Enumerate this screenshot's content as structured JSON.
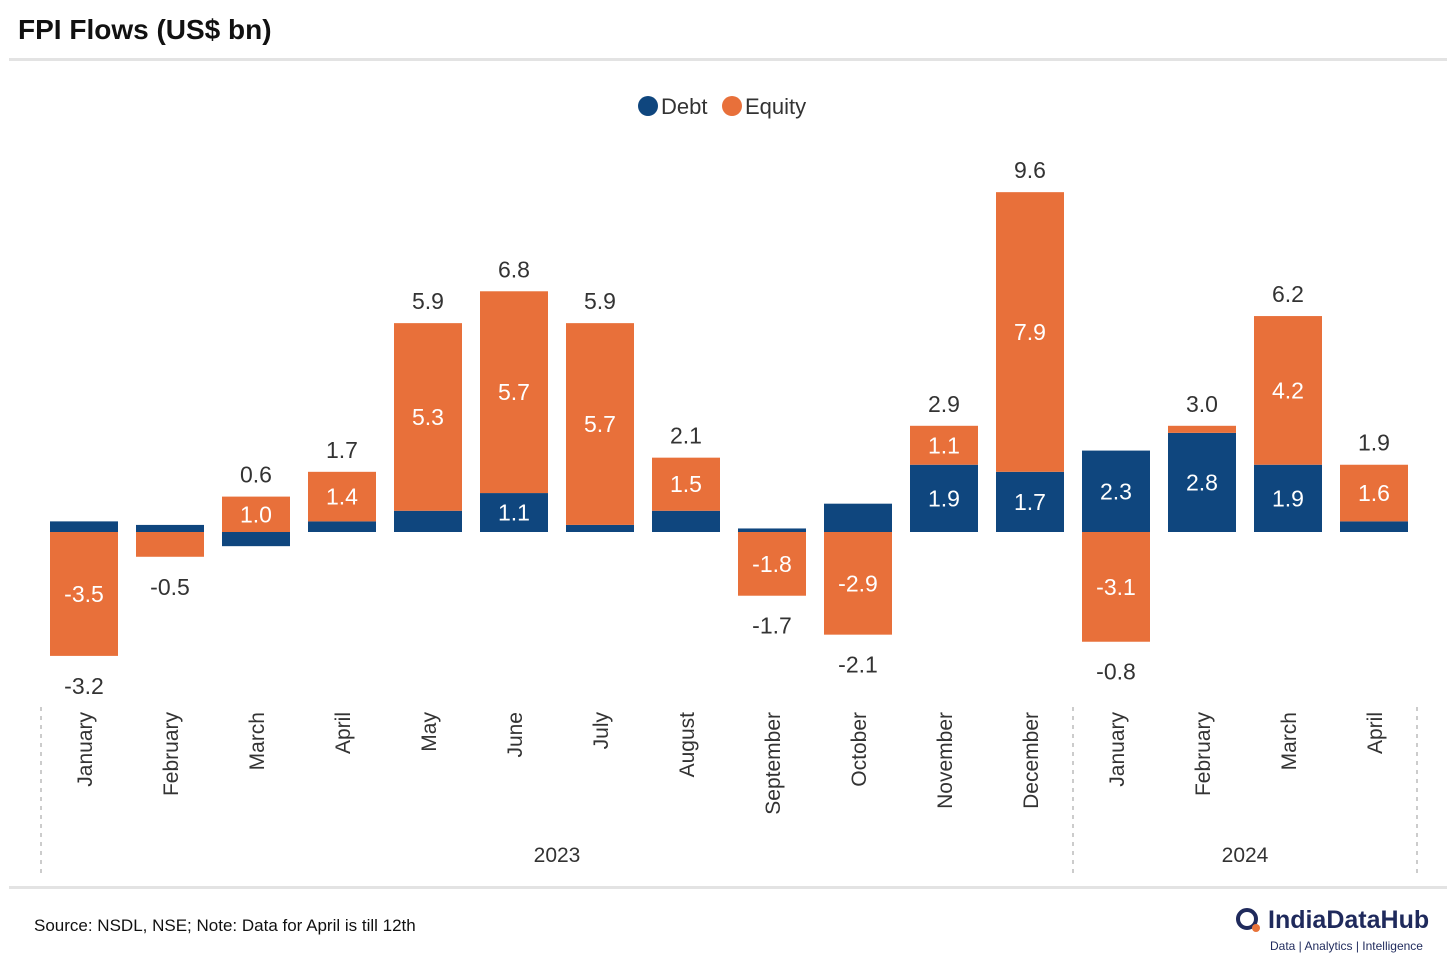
{
  "title": "FPI Flows (US$ bn)",
  "source": "Source: NSDL, NSE; Note: Data for April is till 12th",
  "logo": {
    "name": "IndiaDataHub",
    "tagline": "Data | Analytics | Intelligence"
  },
  "colors": {
    "debt": "#0f467e",
    "equity": "#e8703a"
  },
  "chart_data": {
    "type": "bar",
    "stacked": true,
    "title": "FPI Flows (US$ bn)",
    "legend": {
      "placement": "top-center",
      "entries": [
        "Debt",
        "Equity"
      ]
    },
    "categories": [
      "January",
      "February",
      "March",
      "April",
      "May",
      "June",
      "July",
      "August",
      "September",
      "October",
      "November",
      "December",
      "January",
      "February",
      "March",
      "April"
    ],
    "year_groups": [
      {
        "label": "2023",
        "count": 12
      },
      {
        "label": "2024",
        "count": 4
      }
    ],
    "series": [
      {
        "name": "Debt",
        "color": "#0f467e",
        "values": [
          0.3,
          0.2,
          -0.4,
          0.3,
          0.6,
          1.1,
          0.2,
          0.6,
          0.1,
          0.8,
          1.9,
          1.7,
          2.3,
          2.8,
          1.9,
          0.3
        ],
        "labels": [
          "",
          "",
          "",
          "",
          "",
          "1.1",
          "",
          "",
          "",
          "",
          "1.9",
          "1.7",
          "2.3",
          "2.8",
          "1.9",
          ""
        ]
      },
      {
        "name": "Equity",
        "color": "#e8703a",
        "values": [
          -3.5,
          -0.7,
          1.0,
          1.4,
          5.3,
          5.7,
          5.7,
          1.5,
          -1.8,
          -2.9,
          1.1,
          7.9,
          -3.1,
          0.2,
          4.2,
          1.6
        ],
        "labels": [
          "-3.5",
          "",
          "1.0",
          "1.4",
          "5.3",
          "5.7",
          "5.7",
          "1.5",
          "-1.8",
          "-2.9",
          "1.1",
          "7.9",
          "-3.1",
          "",
          "4.2",
          "1.6"
        ]
      }
    ],
    "totals": [
      "-3.2",
      "-0.5",
      "0.6",
      "1.7",
      "5.9",
      "6.8",
      "5.9",
      "2.1",
      "-1.7",
      "-2.1",
      "2.9",
      "9.6",
      "-0.8",
      "3.0",
      "6.2",
      "1.9"
    ],
    "ylim": [
      -4.8,
      10.6
    ],
    "grid": false,
    "xlabel": "",
    "ylabel": ""
  }
}
